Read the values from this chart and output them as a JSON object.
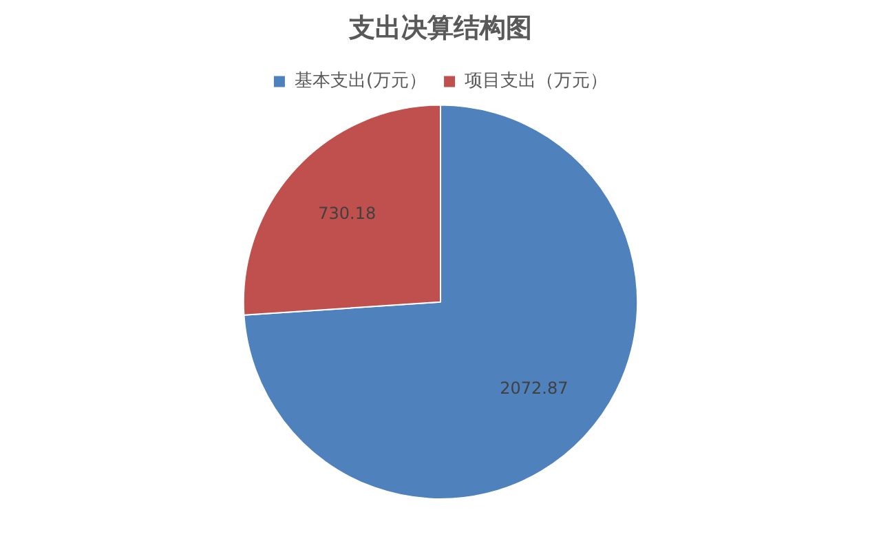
{
  "chart_data": {
    "type": "pie",
    "title": "支出决算结构图",
    "categories": [
      "基本支出(万元）",
      "项目支出（万元）"
    ],
    "values": [
      2072.87,
      730.18
    ],
    "colors": [
      "#4f81bd",
      "#c0504d"
    ],
    "legend": "top",
    "data_labels": true
  }
}
